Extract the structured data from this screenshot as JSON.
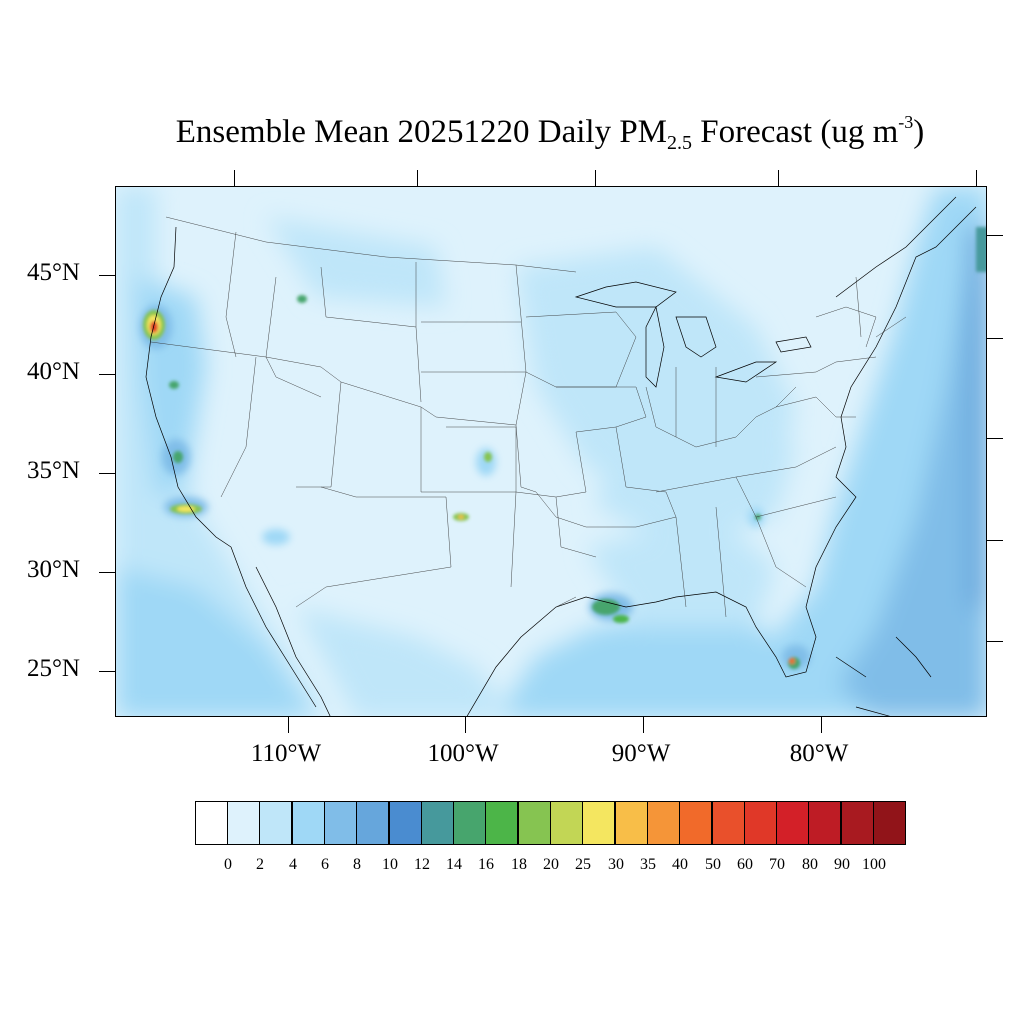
{
  "title": {
    "prefix": "Ensemble Mean 20251220 Daily PM",
    "sub": "2.5",
    "middle": " Forecast (ug m",
    "sup": "-3",
    "suffix": ")"
  },
  "lat_labels": [
    "45°N",
    "40°N",
    "35°N",
    "30°N",
    "25°N"
  ],
  "lon_labels": [
    "110°W",
    "100°W",
    "90°W",
    "80°W"
  ],
  "legend": {
    "colors": [
      "#ffffff",
      "#def2fc",
      "#bfe6f9",
      "#9fd8f6",
      "#80bde8",
      "#66a6dc",
      "#4a8cd0",
      "#46999c",
      "#47a56d",
      "#4cb548",
      "#86c451",
      "#c2d655",
      "#f4e660",
      "#f8be48",
      "#f59538",
      "#f16a2a",
      "#e9502b",
      "#e03828",
      "#d32028",
      "#be1c25",
      "#a81a20",
      "#911419"
    ],
    "labels": [
      "0",
      "2",
      "4",
      "6",
      "8",
      "10",
      "12",
      "14",
      "16",
      "18",
      "20",
      "25",
      "30",
      "35",
      "40",
      "50",
      "60",
      "70",
      "80",
      "90",
      "100"
    ]
  },
  "map": {
    "base_color": "#def2fc",
    "ocean_color": "#9fd8f6"
  }
}
